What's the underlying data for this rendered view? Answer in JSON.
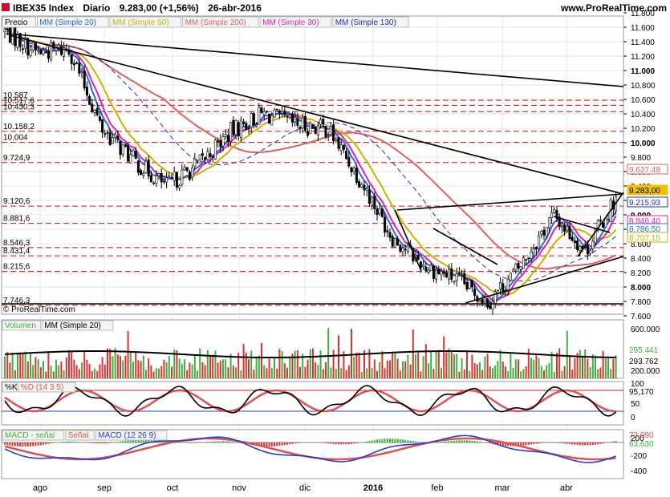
{
  "header": {
    "symbol": "IBEX35 Index",
    "period": "Diario",
    "last": "9.283,00 (+1,56%)",
    "date": "26-abr-2016",
    "site": "www.ProRealTime.com"
  },
  "panels": {
    "price": {
      "legend": [
        "Precio",
        "MM (Simple 20)",
        "MM (Simple 50)",
        "MM (Simple 200)",
        "MM (Simple 30)",
        "MM (Simple 130)"
      ],
      "legend_colors": [
        "#000000",
        "#1e6fe0",
        "#c8b400",
        "#e06060",
        "#e020b0",
        "#2030c0"
      ],
      "copyright": "© ProRealTime.com",
      "axis_ticks": [
        "11.800",
        "11.600",
        "11.400",
        "11.200",
        "11.000",
        "10.800",
        "10.600",
        "10.400",
        "10.200",
        "10.000",
        "9.800",
        "9.600",
        "9.400",
        "9.200",
        "9.000",
        "8.800",
        "8.600",
        "8.400",
        "8.200",
        "8.000",
        "7.800",
        "7.600"
      ],
      "level_labels": [
        "10.587",
        "10.517,6",
        "10.430,3",
        "10.158,2",
        "10.004",
        "9.724,9",
        "9.120,6",
        "8.881,6",
        "8.546,3",
        "8.431,4",
        "8.215,6",
        "7.746,3"
      ],
      "value_badges": [
        {
          "text": "9.627,48",
          "color": "#e06060"
        },
        {
          "text": "9.283,00",
          "color": "#f2c200"
        },
        {
          "text": "9.215,93",
          "color": "#2030c0"
        },
        {
          "text": "8.846,40",
          "color": "#e020b0"
        },
        {
          "text": "8.786,50",
          "color": "#1e6fe0"
        },
        {
          "text": "8.707,15",
          "color": "#c8b400"
        }
      ]
    },
    "volume": {
      "legend": [
        "Volumen",
        "MM (Simple 20)"
      ],
      "axis_ticks": [
        "600.000",
        "200.000"
      ],
      "value_badges": [
        "295.441",
        "293.762"
      ]
    },
    "stoch": {
      "legend": [
        "%K",
        "%D (14 3 5)"
      ],
      "axis_ticks": [
        "100",
        "95,170",
        "50",
        "0"
      ]
    },
    "macd": {
      "legend": [
        "MACD - señal",
        "Señal",
        "MACD (12 26 9)"
      ],
      "axis_ticks": [
        "200",
        "-200",
        "-400"
      ],
      "value_badges": [
        "73,990",
        "63,630"
      ]
    }
  },
  "x_axis": [
    "ago",
    "sep",
    "oct",
    "nov",
    "dic",
    "2016",
    "feb",
    "mar",
    "abr"
  ],
  "chart_data": {
    "type": "candlestick",
    "title": "IBEX35 Index Diario",
    "ylim": [
      7600,
      11800
    ],
    "grid": true,
    "x_labels": [
      "ago",
      "sep",
      "oct",
      "nov",
      "dic",
      "2016",
      "feb",
      "mar",
      "abr"
    ],
    "close_path": [
      {
        "x": "ago",
        "y": 11550
      },
      {
        "x": "ago",
        "y": 11250
      },
      {
        "x": "ago",
        "y": 11300
      },
      {
        "x": "sep",
        "y": 10200
      },
      {
        "x": "sep",
        "y": 9750
      },
      {
        "x": "sep",
        "y": 9400
      },
      {
        "x": "oct",
        "y": 9700
      },
      {
        "x": "oct",
        "y": 10150
      },
      {
        "x": "nov",
        "y": 10400
      },
      {
        "x": "nov",
        "y": 10250
      },
      {
        "x": "dic",
        "y": 10200
      },
      {
        "x": "dic",
        "y": 9500
      },
      {
        "x": "2016",
        "y": 8700
      },
      {
        "x": "2016",
        "y": 8300
      },
      {
        "x": "feb",
        "y": 8100
      },
      {
        "x": "feb",
        "y": 7800
      },
      {
        "x": "mar",
        "y": 8300
      },
      {
        "x": "mar",
        "y": 9000
      },
      {
        "x": "abr",
        "y": 8500
      },
      {
        "x": "abr",
        "y": 9283
      }
    ],
    "levels": [
      10587,
      10517.6,
      10430.3,
      10158.2,
      10004,
      9724.9,
      9120.6,
      8881.6,
      8546.3,
      8431.4,
      8215.6,
      7746.3
    ]
  }
}
